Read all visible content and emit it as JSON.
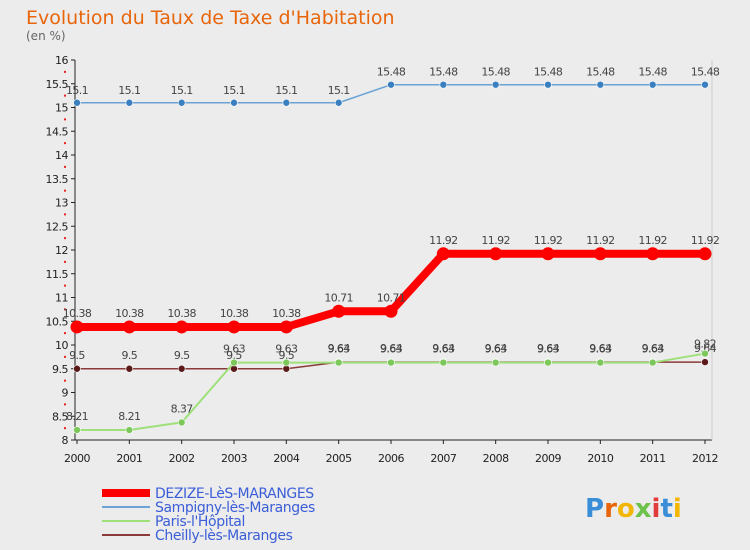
{
  "chart_data": {
    "type": "line",
    "title": "Evolution du Taux de Taxe d'Habitation",
    "subtitle": "(en %)",
    "xlabel": "",
    "ylabel": "",
    "ylim": [
      8,
      16
    ],
    "yticks": [
      "8",
      "8.5",
      "9",
      "9.5",
      "10",
      "10.5",
      "11",
      "11.5",
      "12",
      "12.5",
      "13",
      "13.5",
      "14",
      "14.5",
      "15",
      "15.5",
      "16"
    ],
    "x": [
      "2000",
      "2001",
      "2002",
      "2003",
      "2004",
      "2005",
      "2006",
      "2007",
      "2008",
      "2009",
      "2010",
      "2011",
      "2012"
    ],
    "grid": false,
    "legend_position": "bottom-left",
    "series": [
      {
        "name": "DEZIZE-LèS-MARANGES",
        "color": "#ff0000",
        "values": [
          10.38,
          10.38,
          10.38,
          10.38,
          10.38,
          10.71,
          10.71,
          11.92,
          11.92,
          11.92,
          11.92,
          11.92,
          11.92
        ],
        "labels": [
          "10.38",
          "10.38",
          "10.38",
          "10.38",
          "10.38",
          "10.71",
          "10.71",
          "11.92",
          "11.92",
          "11.92",
          "11.92",
          "11.92",
          "11.92"
        ]
      },
      {
        "name": "Sampigny-lès-Maranges",
        "color": "#6ba3d6",
        "values": [
          15.1,
          15.1,
          15.1,
          15.1,
          15.1,
          15.1,
          15.48,
          15.48,
          15.48,
          15.48,
          15.48,
          15.48,
          15.48
        ],
        "labels": [
          "15.1",
          "15.1",
          "15.1",
          "15.1",
          "15.1",
          "15.1",
          "15.48",
          "15.48",
          "15.48",
          "15.48",
          "15.48",
          "15.48",
          "15.48"
        ]
      },
      {
        "name": "Paris-l'Hôpital",
        "color": "#9ee07a",
        "values": [
          8.21,
          8.21,
          8.37,
          9.63,
          9.63,
          9.63,
          9.63,
          9.63,
          9.63,
          9.63,
          9.63,
          9.63,
          9.82
        ],
        "labels": [
          "8.21",
          "8.21",
          "8.37",
          "9.63",
          "9.63",
          "9.63",
          "9.63",
          "9.63",
          "9.63",
          "9.63",
          "9.63",
          "9.63",
          "9.82"
        ]
      },
      {
        "name": "Cheilly-lès-Maranges",
        "color": "#8b3a3a",
        "values": [
          9.5,
          9.5,
          9.5,
          9.5,
          9.5,
          9.64,
          9.64,
          9.64,
          9.64,
          9.64,
          9.64,
          9.64,
          9.64
        ],
        "labels": [
          "9.5",
          "9.5",
          "9.5",
          "9.5",
          "9.5",
          "9.64",
          "9.64",
          "9.64",
          "9.64",
          "9.64",
          "9.64",
          "9.64",
          "9.64"
        ]
      }
    ]
  },
  "brand": {
    "logo_text": "Proxiti",
    "letter_colors": [
      "#3a8ed8",
      "#e8650a",
      "#f2b705",
      "#6cc24a",
      "#e23b3b",
      "#3a8ed8",
      "#f2b705"
    ]
  }
}
